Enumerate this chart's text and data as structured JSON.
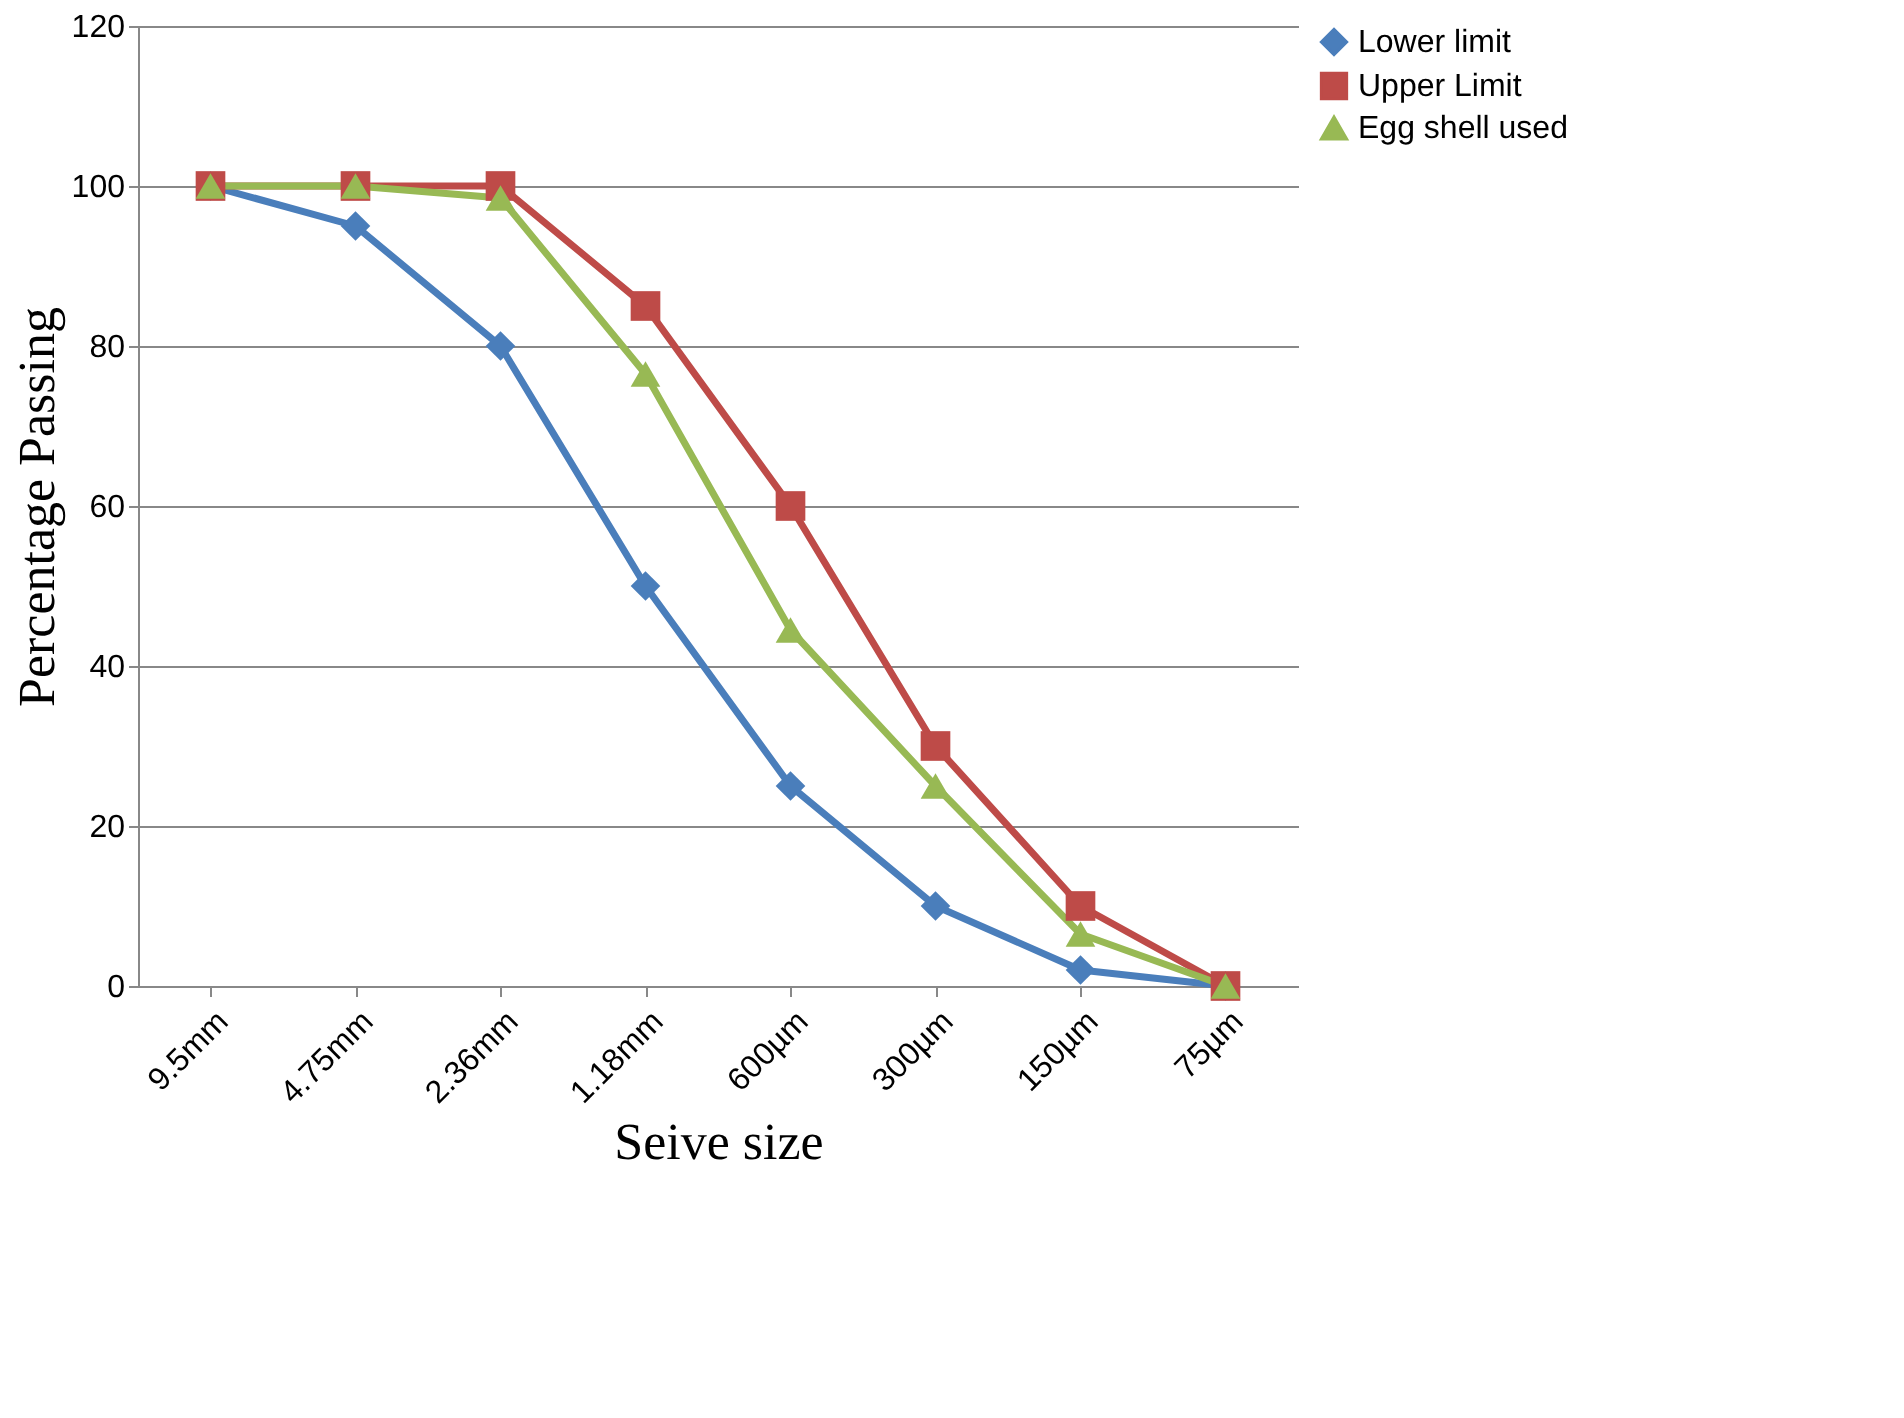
{
  "chart_data": {
    "type": "line",
    "xlabel": "Seive size",
    "ylabel": "Percentage Passing",
    "categories": [
      "9.5mm",
      "4.75mm",
      "2.36mm",
      "1.18mm",
      "600µm",
      "300µm",
      "150µm",
      "75µm"
    ],
    "series": [
      {
        "name": "Lower limit",
        "color": "#4a7ebb",
        "marker": "diamond",
        "values": [
          100,
          95,
          80,
          50,
          25,
          10,
          2,
          0
        ]
      },
      {
        "name": "Upper Limit",
        "color": "#be4b48",
        "marker": "square",
        "values": [
          100,
          100,
          100,
          85,
          60,
          30,
          10,
          0
        ]
      },
      {
        "name": "Egg shell used",
        "color": "#98b954",
        "marker": "triangle",
        "values": [
          100,
          100,
          98.5,
          76.5,
          44.5,
          25,
          6.5,
          0
        ]
      }
    ],
    "ylim": [
      0,
      120
    ],
    "yticks": [
      0,
      20,
      40,
      60,
      80,
      100,
      120
    ],
    "grid": "y",
    "legend": "right",
    "line_style": "solid"
  }
}
